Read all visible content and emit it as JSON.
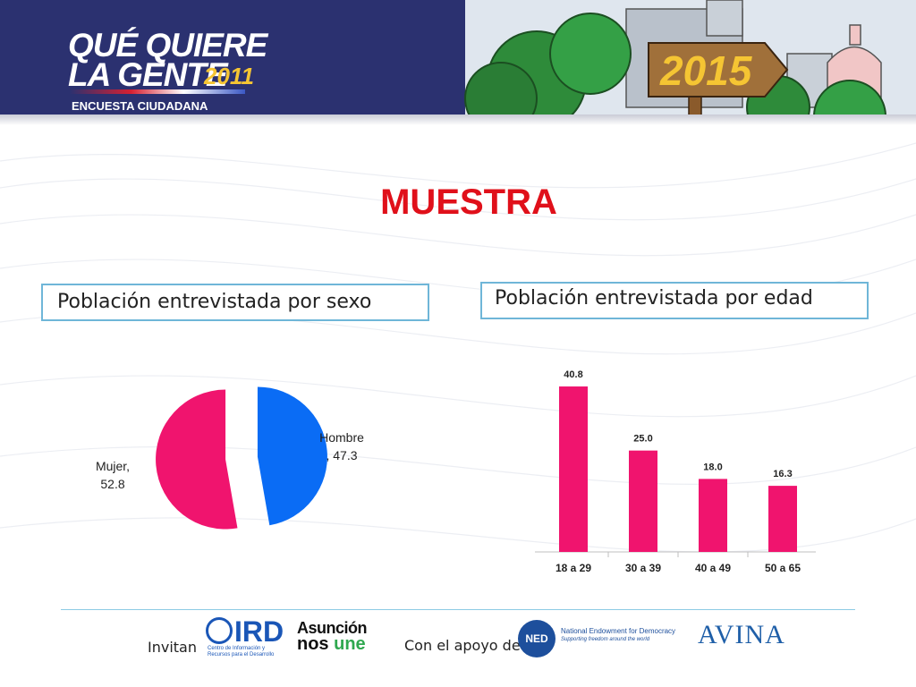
{
  "header": {
    "logo_line1": "QUÉ QUIERE",
    "logo_line2": "LA GENTE",
    "logo_year": "2011",
    "logo_subtitle": "ENCUESTA CIUDADANA",
    "sign_text": "2015",
    "colors": {
      "background": "#2b3170",
      "sign": "#f5c533"
    }
  },
  "title": "MUESTRA",
  "colors": {
    "title": "#e0101a",
    "bar": "#f0146e",
    "pie_mujer": "#f0146e",
    "pie_hombre": "#0a6cf5",
    "box_border": "#6fb6d8"
  },
  "sexo": {
    "box_title": "Población entrevistada por sexo"
  },
  "edad": {
    "box_title": "Población entrevistada por edad"
  },
  "chart_data": [
    {
      "type": "pie",
      "title": "",
      "slices": [
        {
          "label": "Mujer",
          "value": 52.8,
          "display": "Mujer,\n52.8",
          "color": "#f0146e"
        },
        {
          "label": "Hombre",
          "value": 47.3,
          "display": "Hombre\n, 47.3",
          "color": "#0a6cf5"
        }
      ],
      "exploded": true
    },
    {
      "type": "bar",
      "title": "",
      "categories": [
        "18 a 29",
        "30 a 39",
        "40 a 49",
        "50 a 65"
      ],
      "values": [
        40.8,
        25.0,
        18.0,
        16.3
      ],
      "value_labels": [
        "40.8",
        "25.0",
        "18.0",
        "16.3"
      ],
      "xlabel": "",
      "ylabel": "",
      "ylim": [
        0,
        45
      ],
      "grid": false,
      "color": "#f0146e"
    }
  ],
  "footer": {
    "invitan": "Invitan",
    "apoyo": "Con el apoyo de",
    "ird_logo": "IRD",
    "ird_sub": "Centro de Información y Recursos para el Desarrollo",
    "asuncion_top": "Asunción",
    "asuncion_bottom_a": "nos ",
    "asuncion_bottom_b": "une",
    "ned_logo": "NED",
    "ned_name": "National Endowment for Democracy",
    "ned_tagline": "Supporting freedom around the world",
    "avina_logo": "AVINA"
  }
}
